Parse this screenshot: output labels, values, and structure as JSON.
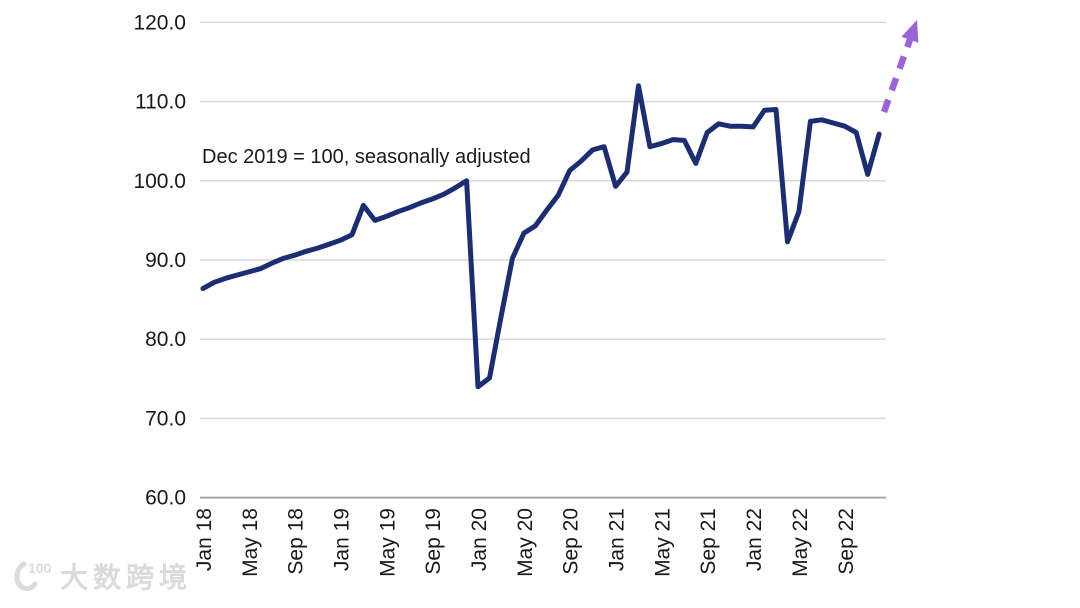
{
  "chart_data": {
    "type": "line",
    "title": "",
    "annotation": "Dec 2019 = 100, seasonally adjusted",
    "grid": "horizontal",
    "legend": "none",
    "ylim": [
      60,
      120
    ],
    "y_ticks": [
      {
        "value": 120,
        "label": "120.0"
      },
      {
        "value": 110,
        "label": "110.0"
      },
      {
        "value": 100,
        "label": "100.0"
      },
      {
        "value": 90,
        "label": "90.0"
      },
      {
        "value": 80,
        "label": "80.0"
      },
      {
        "value": 70,
        "label": "70.0"
      },
      {
        "value": 60,
        "label": "60.0"
      }
    ],
    "x_tick_every_months": 4,
    "x_tick_labels": [
      "Jan 18",
      "May 18",
      "Sep 18",
      "Jan 19",
      "May 19",
      "Sep 19",
      "Jan 20",
      "May 20",
      "Sep 20",
      "Jan 21",
      "May 21",
      "Sep 21",
      "Jan 22",
      "May 22",
      "Sep 22"
    ],
    "series": [
      {
        "name": "index-dec2019-100",
        "color": "#1b2d73",
        "months": [
          "Jan 18",
          "Feb 18",
          "Mar 18",
          "Apr 18",
          "May 18",
          "Jun 18",
          "Jul 18",
          "Aug 18",
          "Sep 18",
          "Oct 18",
          "Nov 18",
          "Dec 18",
          "Jan 19",
          "Feb 19",
          "Mar 19",
          "Apr 19",
          "May 19",
          "Jun 19",
          "Jul 19",
          "Aug 19",
          "Sep 19",
          "Oct 19",
          "Nov 19",
          "Dec 19",
          "Jan 20",
          "Feb 20",
          "Mar 20",
          "Apr 20",
          "May 20",
          "Jun 20",
          "Jul 20",
          "Aug 20",
          "Sep 20",
          "Oct 20",
          "Nov 20",
          "Dec 20",
          "Jan 21",
          "Feb 21",
          "Mar 21",
          "Apr 21",
          "May 21",
          "Jun 21",
          "Jul 21",
          "Aug 21",
          "Sep 21",
          "Oct 21",
          "Nov 21",
          "Dec 21",
          "Jan 22",
          "Feb 22",
          "Mar 22",
          "Apr 22",
          "May 22",
          "Jun 22",
          "Jul 22",
          "Aug 22",
          "Sep 22",
          "Oct 22",
          "Nov 22",
          "Dec 22"
        ],
        "values": [
          86.4,
          87.2,
          87.7,
          88.1,
          88.5,
          88.9,
          89.6,
          90.2,
          90.6,
          91.1,
          91.5,
          92.0,
          92.5,
          93.2,
          96.9,
          95.0,
          95.5,
          96.1,
          96.6,
          97.2,
          97.7,
          98.3,
          99.1,
          100.0,
          74.0,
          75.1,
          82.8,
          90.2,
          93.4,
          94.3,
          96.3,
          98.2,
          101.3,
          102.5,
          103.9,
          104.3,
          99.3,
          101.1,
          112.0,
          104.3,
          104.7,
          105.2,
          105.1,
          102.2,
          106.1,
          107.2,
          106.9,
          106.9,
          106.8,
          108.9,
          109.0,
          92.3,
          96.1,
          107.5,
          107.7,
          107.3,
          106.9,
          106.1,
          100.8,
          105.9
        ]
      }
    ],
    "projection_arrow": {
      "style": "dashed",
      "direction": "up-right",
      "color": "#9c62d8"
    }
  },
  "colors": {
    "line": "#1b2d73",
    "arrow": "#9c62d8",
    "gridline": "#d9d9d9",
    "baseline": "#a6a6a6",
    "text": "#1a1a1a",
    "watermark": "#dbdbdb"
  },
  "watermark": {
    "text": "大数跨境",
    "logo": "100-swoosh-logo"
  }
}
